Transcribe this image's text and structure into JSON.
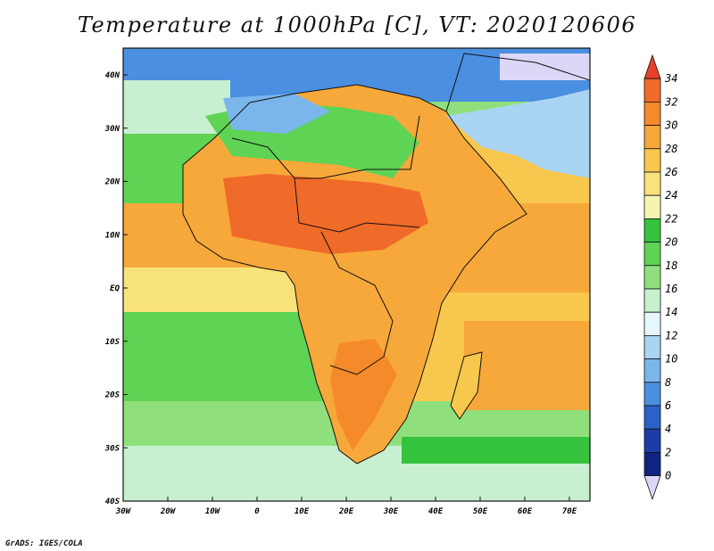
{
  "title": "Temperature at 1000hPa [C], VT: 2020120606",
  "credit": "GrADS: IGES/COLA",
  "map": {
    "lon_range": [
      -30,
      75
    ],
    "lat_range": [
      -40,
      45
    ],
    "lat_ticks": [
      "40N",
      "30N",
      "20N",
      "10N",
      "EQ",
      "10S",
      "20S",
      "30S",
      "40S"
    ],
    "lon_ticks": [
      "30W",
      "20W",
      "10W",
      "0",
      "10E",
      "20E",
      "30E",
      "40E",
      "50E",
      "60E",
      "70E"
    ]
  },
  "colorbar": {
    "labels": [
      "34",
      "32",
      "30",
      "28",
      "26",
      "24",
      "22",
      "20",
      "18",
      "16",
      "14",
      "12",
      "10",
      "8",
      "6",
      "4",
      "2",
      "0"
    ],
    "colors": [
      "#e8412a",
      "#f06a2a",
      "#f58a2a",
      "#f7a83a",
      "#f8c74e",
      "#f8e27a",
      "#f4f5b0",
      "#35c23d",
      "#5fd354",
      "#8fe07c",
      "#c8f0d0",
      "#e6f7fb",
      "#a9d5f2",
      "#7ab6ec",
      "#4a8fe0",
      "#2a62c9",
      "#1c3da8",
      "#0f2480",
      "#ddd7f7"
    ]
  }
}
